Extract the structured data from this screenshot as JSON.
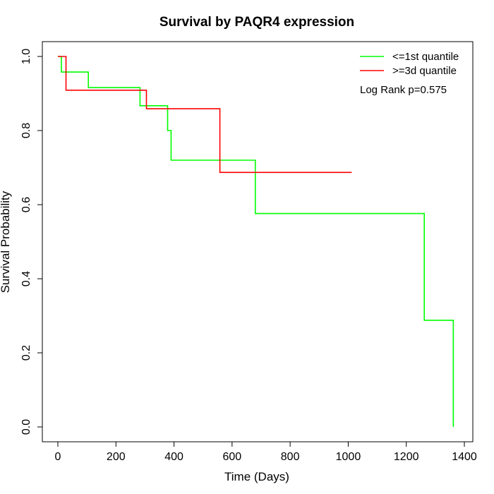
{
  "chart_data": {
    "type": "line",
    "title": "Survival by PAQR4 expression",
    "xlabel": "Time (Days)",
    "ylabel": "Survival Probability",
    "xlim": [
      0,
      1400
    ],
    "ylim": [
      0,
      1
    ],
    "xticks": [
      "0",
      "200",
      "400",
      "600",
      "800",
      "1000",
      "1200",
      "1400"
    ],
    "yticks": [
      "0.0",
      "0.2",
      "0.4",
      "0.6",
      "0.8",
      "1.0"
    ],
    "grid": false,
    "legend_position": "top-right",
    "annotation": "Log Rank p=0.575",
    "series": [
      {
        "name": "<=1st quantile",
        "color": "#00ff00",
        "step": true,
        "x": [
          0,
          12,
          105,
          283,
          378,
          390,
          680,
          1262,
          1362
        ],
        "y": [
          1.0,
          0.958,
          0.916,
          0.867,
          0.8,
          0.72,
          0.576,
          0.288,
          0.0
        ]
      },
      {
        "name": ">=3d quantile",
        "color": "#ff0000",
        "step": true,
        "x": [
          0,
          28,
          305,
          558,
          1012
        ],
        "y": [
          1.0,
          0.909,
          0.859,
          0.687,
          0.687
        ]
      }
    ]
  }
}
